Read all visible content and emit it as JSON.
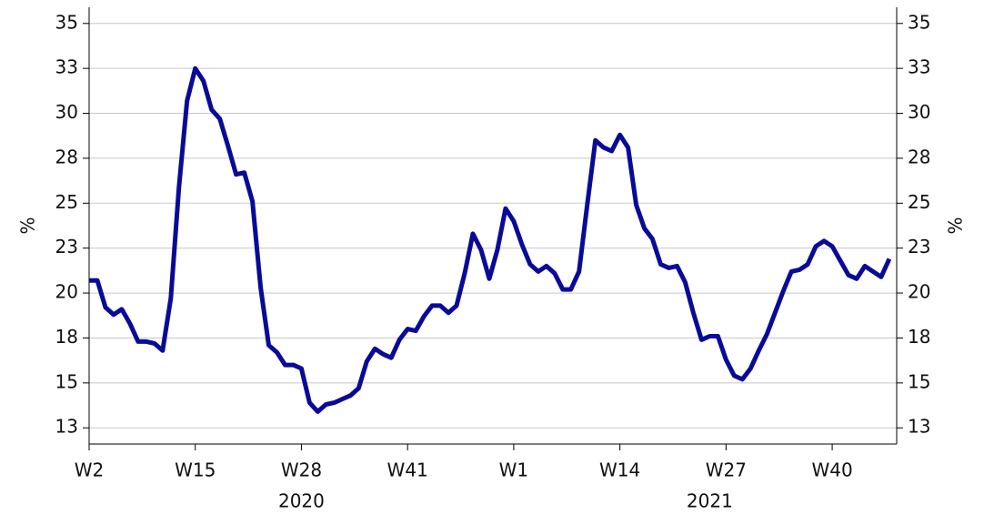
{
  "chart_data": {
    "type": "line",
    "x": [
      2,
      3,
      4,
      5,
      6,
      7,
      8,
      9,
      10,
      11,
      12,
      13,
      14,
      15,
      16,
      17,
      18,
      19,
      20,
      21,
      22,
      23,
      24,
      25,
      26,
      27,
      28,
      29,
      30,
      31,
      32,
      33,
      34,
      35,
      36,
      37,
      38,
      39,
      40,
      41,
      42,
      43,
      44,
      45,
      46,
      47,
      48,
      49,
      50,
      51,
      52,
      53,
      54,
      55,
      56,
      57,
      58,
      59,
      60,
      61,
      62,
      63,
      64,
      65,
      66,
      67,
      68,
      69,
      70,
      71,
      72,
      73,
      74,
      75,
      76,
      77,
      78,
      79,
      80,
      81,
      82,
      83,
      84,
      85,
      86,
      87,
      88,
      89,
      90,
      91,
      92,
      93,
      94,
      95,
      96,
      97,
      98,
      99,
      100
    ],
    "series": [
      {
        "color": "#0a0a98",
        "values": [
          20.7,
          20.7,
          19.2,
          18.8,
          19.1,
          18.3,
          17.3,
          17.3,
          17.2,
          16.8,
          19.7,
          25.9,
          30.7,
          32.5,
          31.8,
          30.2,
          29.7,
          28.2,
          26.6,
          26.7,
          25.1,
          20.3,
          17.1,
          16.7,
          16.0,
          16.0,
          15.8,
          13.9,
          13.4,
          13.8,
          13.9,
          14.1,
          14.3,
          14.7,
          16.2,
          16.9,
          16.6,
          16.4,
          17.4,
          18.0,
          17.9,
          18.7,
          19.3,
          19.3,
          18.9,
          19.3,
          21.1,
          23.3,
          22.4,
          20.8,
          22.4,
          24.7,
          24.0,
          22.7,
          21.6,
          21.2,
          21.5,
          21.1,
          20.2,
          20.2,
          21.2,
          24.9,
          28.5,
          28.1,
          27.9,
          28.8,
          28.1,
          24.9,
          23.6,
          23.0,
          21.6,
          21.4,
          21.5,
          20.6,
          18.9,
          17.4,
          17.6,
          17.6,
          16.3,
          15.4,
          15.2,
          15.8,
          16.8,
          17.7,
          18.9,
          20.1,
          21.2,
          21.3,
          21.6,
          22.6,
          22.9,
          22.6,
          21.8,
          21.0,
          20.8,
          21.5,
          21.2,
          20.9,
          21.9
        ]
      }
    ],
    "xlim": [
      2,
      100.9
    ],
    "xticks": [
      {
        "value": 2,
        "label": "W2"
      },
      {
        "value": 15,
        "label": "W15"
      },
      {
        "value": 28,
        "label": "W28"
      },
      {
        "value": 41,
        "label": "W41"
      },
      {
        "value": 54,
        "label": "W1"
      },
      {
        "value": 67,
        "label": "W14"
      },
      {
        "value": 80,
        "label": "W27"
      },
      {
        "value": 93,
        "label": "W40"
      }
    ],
    "year_labels": [
      {
        "value": 28,
        "label": "2020"
      },
      {
        "value": 78,
        "label": "2021"
      }
    ],
    "ylim": [
      11.6,
      35.9
    ],
    "yticks": [
      {
        "value": 12.5,
        "label": "13"
      },
      15,
      {
        "value": 17.5,
        "label": "18"
      },
      20,
      {
        "value": 22.5,
        "label": "23"
      },
      25,
      {
        "value": 27.5,
        "label": "28"
      },
      30,
      {
        "value": 32.5,
        "label": "33"
      },
      35
    ],
    "y2lim": [
      11.6,
      35.9
    ],
    "y2ticks": [
      {
        "value": 12.5,
        "label": "13"
      },
      15,
      {
        "value": 17.5,
        "label": "18"
      },
      20,
      {
        "value": 22.5,
        "label": "23"
      },
      25,
      {
        "value": 27.5,
        "label": "28"
      },
      30,
      {
        "value": 32.5,
        "label": "33"
      },
      35
    ],
    "ylabel": "%",
    "y2label": "%",
    "grid": true
  }
}
